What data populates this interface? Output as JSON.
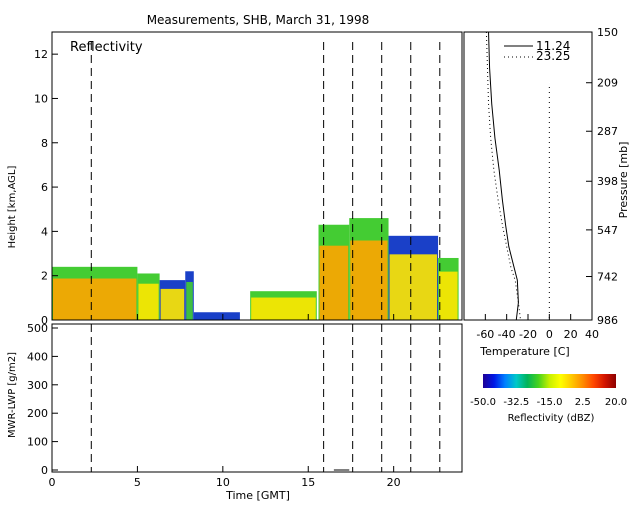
{
  "chart_data": [
    {
      "type": "heatmap",
      "title": "Measurements, SHB, March 31, 1998",
      "panel_label": "Reflectivity",
      "xlabel": "Time [GMT]",
      "ylabel": "Height [km,AGL]",
      "xlim": [
        0,
        24
      ],
      "ylim": [
        0,
        13
      ],
      "xticks": [
        "0",
        "5",
        "10",
        "15",
        "20"
      ],
      "yticks": [
        "0",
        "2",
        "4",
        "6",
        "8",
        "10",
        "12"
      ],
      "sounding_times_gmt": [
        2.3,
        15.9,
        17.6,
        19.3,
        21.0,
        22.7
      ],
      "echo_regions": [
        {
          "start": 0.0,
          "end": 5.0,
          "top": 2.4,
          "core": "orange",
          "fringe": "green"
        },
        {
          "start": 5.0,
          "end": 6.3,
          "top": 2.1,
          "core": "yellow",
          "fringe": "green"
        },
        {
          "start": 6.3,
          "end": 7.8,
          "top": 1.8,
          "core": "yellow",
          "fringe": "blue"
        },
        {
          "start": 7.8,
          "end": 8.3,
          "top": 2.2,
          "core": "green",
          "fringe": "blue"
        },
        {
          "start": 8.3,
          "end": 11.0,
          "top": 0.35,
          "core": "blue",
          "fringe": "blue"
        },
        {
          "start": 11.6,
          "end": 15.5,
          "top": 1.3,
          "core": "yellow",
          "fringe": "green"
        },
        {
          "start": 15.6,
          "end": 17.4,
          "top": 4.3,
          "core": "orange",
          "fringe": "green"
        },
        {
          "start": 17.4,
          "end": 19.7,
          "top": 4.6,
          "core": "orange",
          "fringe": "green"
        },
        {
          "start": 19.7,
          "end": 22.6,
          "top": 3.8,
          "core": "yellow",
          "fringe": "blue"
        },
        {
          "start": 22.6,
          "end": 23.8,
          "top": 2.8,
          "core": "yellow",
          "fringe": "green"
        }
      ]
    },
    {
      "type": "line",
      "ylabel": "MWR-LWP [g/m2]",
      "xlabel": "Time [GMT]",
      "xlim": [
        0,
        24
      ],
      "ylim": [
        0,
        500
      ],
      "xticks": [
        "0",
        "5",
        "10",
        "15",
        "20"
      ],
      "yticks": [
        "0",
        "100",
        "200",
        "300",
        "400",
        "500"
      ],
      "series": [
        {
          "x": [
            16.5,
            17.4
          ],
          "values": [
            0,
            0
          ]
        }
      ]
    },
    {
      "type": "line",
      "xlabel": "Temperature [C]",
      "ylabel": "Pressure [mb]",
      "xlim": [
        -80,
        40
      ],
      "xticks": [
        "-60",
        "-40",
        "-20",
        "0",
        "20",
        "40"
      ],
      "pressure_ticks": [
        "150",
        "209",
        "287",
        "398",
        "547",
        "742",
        "986"
      ],
      "series": [
        {
          "name": "11.24",
          "style": "solid",
          "temperature": [
            -57,
            -56,
            -54,
            -51,
            -47,
            -44,
            -41,
            -38,
            -33,
            -30,
            -29,
            -31
          ],
          "pressure": [
            150,
            190,
            240,
            300,
            370,
            450,
            530,
            610,
            700,
            760,
            880,
            986
          ]
        },
        {
          "name": "23.25",
          "style": "dotted",
          "temperature": [
            -59,
            -58,
            -57,
            -55,
            -52,
            -48,
            -44,
            -40,
            -36,
            -32,
            -29,
            -27
          ],
          "pressure": [
            150,
            190,
            240,
            300,
            370,
            450,
            530,
            610,
            700,
            760,
            880,
            986
          ]
        }
      ],
      "reference_line_temperature": 0
    },
    {
      "type": "colorbar",
      "xlabel": "Reflectivity (dBZ)",
      "ticks": [
        "-50.0",
        "-32.5",
        "-15.0",
        "2.5",
        "20.0"
      ],
      "range": [
        -50,
        20
      ],
      "colors": [
        "#1e0096",
        "#0018e6",
        "#0080ff",
        "#00c8c8",
        "#00b45a",
        "#46d21e",
        "#c8f000",
        "#ffff00",
        "#ffc800",
        "#ff8c00",
        "#ff4600",
        "#d21400",
        "#8c0000"
      ]
    }
  ]
}
